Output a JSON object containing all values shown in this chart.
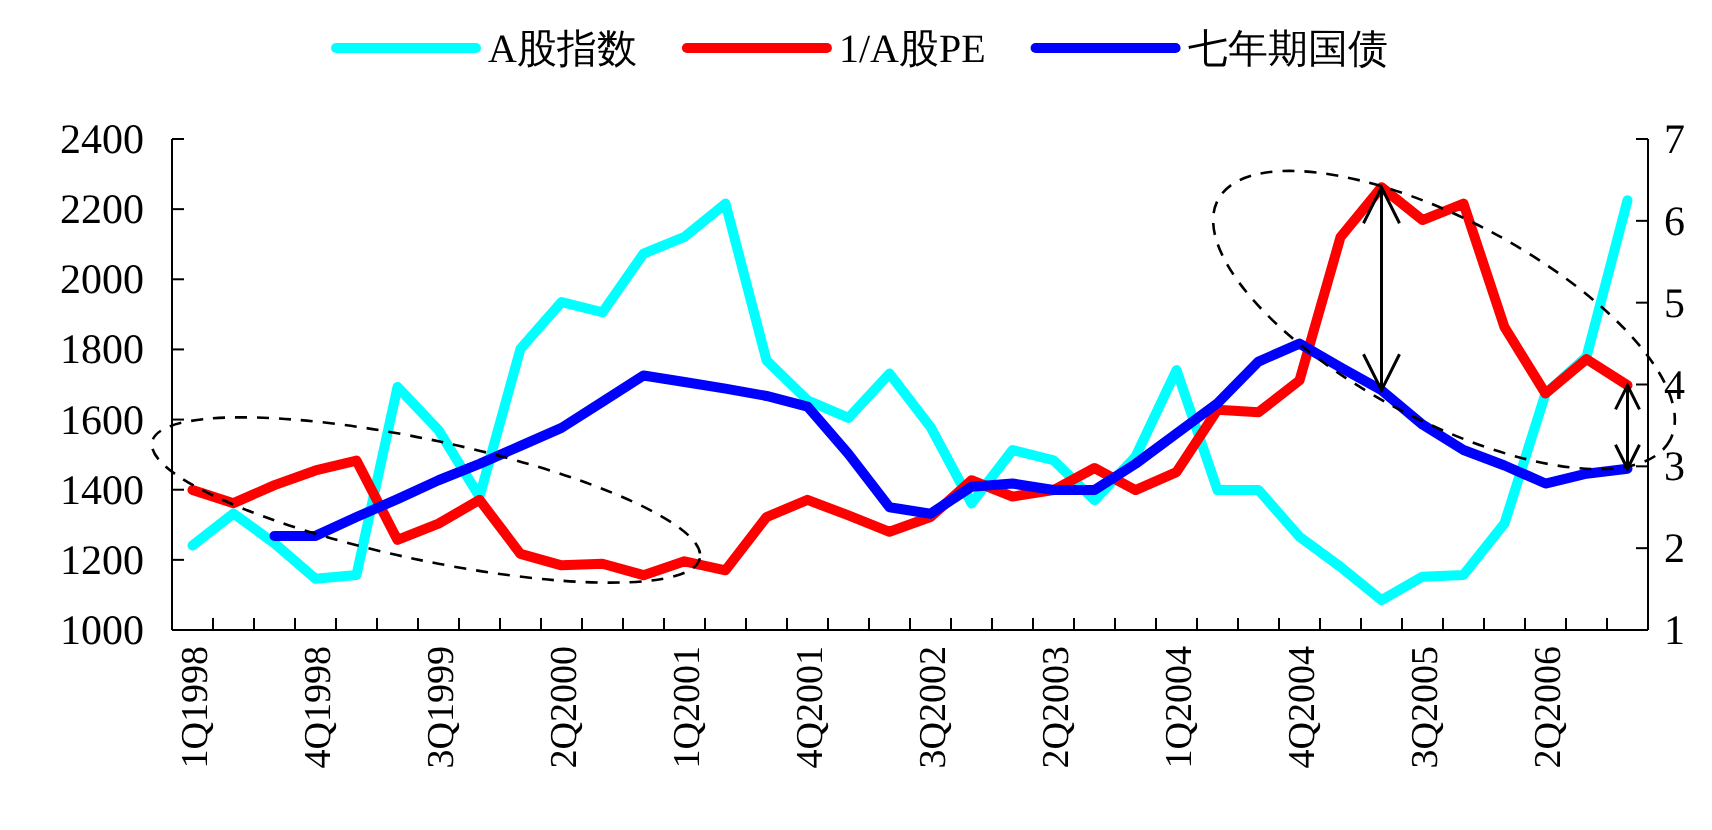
{
  "chart_data": {
    "type": "line",
    "categories": [
      "1Q1998",
      null,
      null,
      "4Q1998",
      null,
      null,
      "3Q1999",
      null,
      null,
      "2Q2000",
      null,
      null,
      "1Q2001",
      null,
      null,
      "4Q2001",
      null,
      null,
      "3Q2002",
      null,
      null,
      "2Q2003",
      null,
      null,
      "1Q2004",
      null,
      null,
      "4Q2004",
      null,
      null,
      "3Q2005",
      null,
      null,
      "2Q2006",
      null,
      null
    ],
    "series": [
      {
        "name": "A股指数",
        "color": "#00ffff",
        "values": [
          1241,
          1332,
          1247,
          1146,
          1157,
          1693,
          1570,
          1380,
          1802,
          1935,
          1906,
          2073,
          2121,
          2216,
          1769,
          1655,
          1605,
          1731,
          1579,
          1361,
          1513,
          1484,
          1370,
          1494,
          1741,
          1399,
          1399,
          1266,
          1180,
          1085,
          1152,
          1157,
          1304,
          1674,
          1779,
          2225
        ]
      },
      {
        "name": "1/A股PE",
        "color": "#ff0000",
        "axis": "y2",
        "values": [
          2.71,
          2.55,
          2.77,
          2.95,
          3.07,
          2.1,
          2.3,
          2.59,
          1.93,
          1.79,
          1.81,
          1.67,
          1.84,
          1.73,
          2.38,
          2.59,
          2.4,
          2.2,
          2.38,
          2.83,
          2.63,
          2.71,
          2.98,
          2.71,
          2.93,
          3.69,
          3.66,
          4.05,
          5.8,
          6.41,
          6.01,
          6.21,
          4.7,
          3.89,
          4.31,
          3.99
        ]
      },
      {
        "name": "七年期国债",
        "color": "#0000ff",
        "axis": "y2",
        "values": [
          null,
          null,
          2.15,
          2.15,
          2.38,
          2.6,
          2.83,
          3.03,
          3.25,
          3.47,
          3.79,
          4.11,
          4.03,
          3.95,
          3.86,
          3.73,
          3.15,
          2.5,
          2.42,
          2.75,
          2.79,
          2.71,
          2.71,
          3.03,
          3.4,
          3.77,
          4.28,
          4.5,
          4.21,
          3.93,
          3.51,
          3.2,
          3.01,
          2.79,
          2.91,
          2.97
        ]
      }
    ],
    "ylim": [
      1000,
      2400
    ],
    "yticks": [
      1000,
      1200,
      1400,
      1600,
      1800,
      2000,
      2200,
      2400
    ],
    "y2lim": [
      1,
      7
    ],
    "y2ticks": [
      1,
      2,
      3,
      4,
      5,
      6,
      7
    ],
    "legend": "top",
    "grid": false
  }
}
